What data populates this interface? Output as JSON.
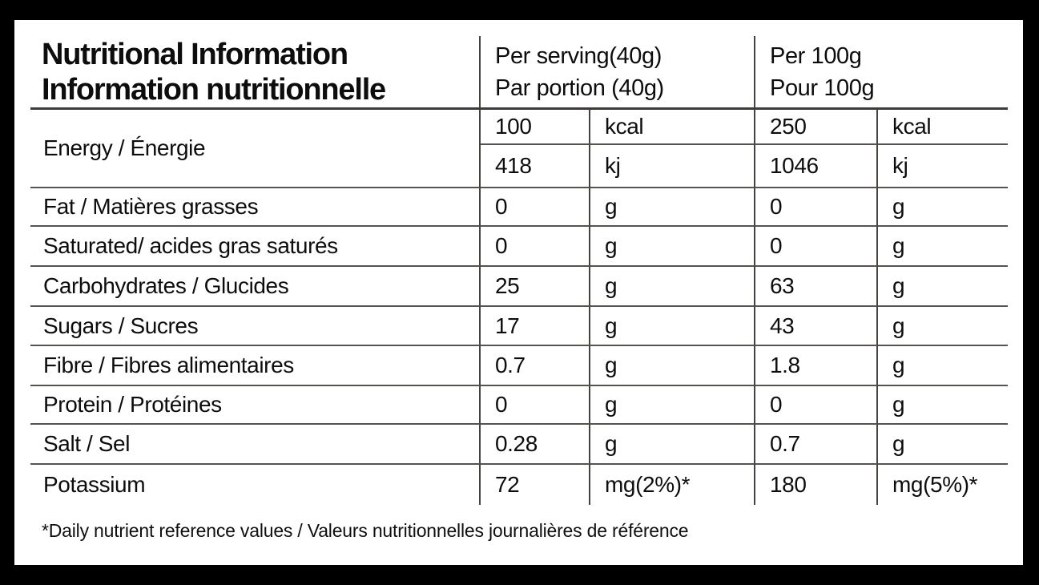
{
  "page": {
    "background_color": "#000000",
    "panel_color": "#ffffff",
    "grid_line_color": "#46423f",
    "text_color": "#0d0d0d"
  },
  "header": {
    "title_en": "Nutritional Information",
    "title_fr": "Information nutritionnelle",
    "col_per_serving_line1": "Per serving(40g)",
    "col_per_serving_line2": "Par portion (40g)",
    "col_per_100g_line1": "Per 100g",
    "col_per_100g_line2": "Pour 100g"
  },
  "energy": {
    "label": "Energy / Énergie",
    "kcal": {
      "serving_value": "100",
      "serving_unit": "kcal",
      "per100_value": "250",
      "per100_unit": "kcal"
    },
    "kj": {
      "serving_value": "418",
      "serving_unit": "kj",
      "per100_value": "1046",
      "per100_unit": "kj"
    }
  },
  "nutrients": [
    {
      "label": "Fat / Matières grasses",
      "serving_value": "0",
      "serving_unit": "g",
      "per100_value": "0",
      "per100_unit": "g"
    },
    {
      "label": "Saturated/ acides gras saturés",
      "serving_value": "0",
      "serving_unit": "g",
      "per100_value": "0",
      "per100_unit": "g"
    },
    {
      "label": "Carbohydrates / Glucides",
      "serving_value": "25",
      "serving_unit": "g",
      "per100_value": "63",
      "per100_unit": "g"
    },
    {
      "label": "Sugars / Sucres",
      "serving_value": "17",
      "serving_unit": "g",
      "per100_value": "43",
      "per100_unit": "g"
    },
    {
      "label": "Fibre / Fibres alimentaires",
      "serving_value": "0.7",
      "serving_unit": "g",
      "per100_value": "1.8",
      "per100_unit": "g"
    },
    {
      "label": "Protein / Protéines",
      "serving_value": "0",
      "serving_unit": "g",
      "per100_value": "0",
      "per100_unit": "g"
    },
    {
      "label": "Salt / Sel",
      "serving_value": "0.28",
      "serving_unit": "g",
      "per100_value": "0.7",
      "per100_unit": "g"
    },
    {
      "label": "Potassium",
      "serving_value": "72",
      "serving_unit": "mg(2%)*",
      "per100_value": "180",
      "per100_unit": "mg(5%)*"
    }
  ],
  "footnote": "*Daily nutrient reference values / Valeurs nutritionnelles journalières de référence"
}
